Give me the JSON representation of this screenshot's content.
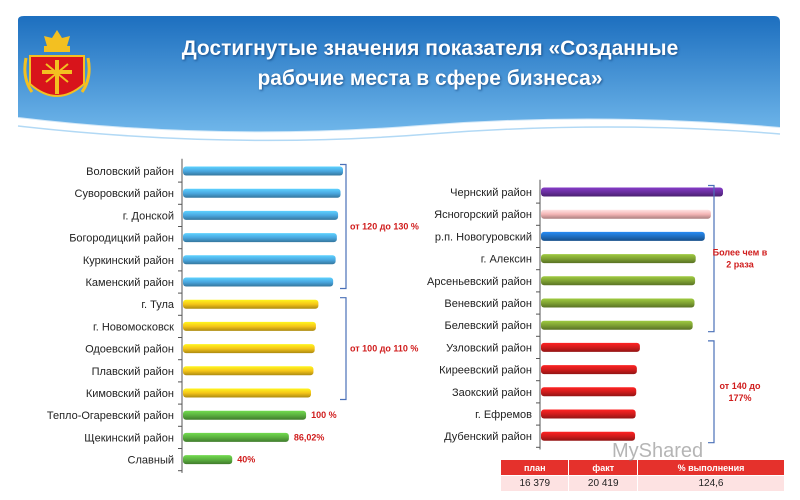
{
  "title_line1": "Достигнутые значения показателя «Созданные",
  "title_line2": "рабочие места в сфере бизнеса»",
  "colors": {
    "blue": "#4aa8e0",
    "yellow": "#f5c518",
    "green": "#5bb03f",
    "purple": "#6a2fa0",
    "pink": "#f4b6b6",
    "darkblue": "#1f6fc2",
    "olive": "#7fa233",
    "red": "#d01c1c",
    "note": "#d01c1c"
  },
  "chart_data": [
    {
      "type": "bar",
      "orientation": "horizontal",
      "categories": [
        "Воловский район",
        "Суворовский район",
        "г. Донской",
        "Богородицкий район",
        "Куркинский район",
        "Каменский район",
        "г. Тула",
        "г. Новомосковск",
        "Одоевский район",
        "Плавский район",
        "Кимовский район",
        "Тепло-Огаревский район",
        "Щекинский район",
        "Славный"
      ],
      "values": [
        130,
        128,
        126,
        125,
        124,
        122,
        110,
        108,
        107,
        106,
        104,
        100,
        86.02,
        40
      ],
      "bar_colors": [
        "blue",
        "blue",
        "blue",
        "blue",
        "blue",
        "blue",
        "yellow",
        "yellow",
        "yellow",
        "yellow",
        "yellow",
        "green",
        "green",
        "green"
      ],
      "data_labels": [
        "",
        "",
        "",
        "",
        "",
        "",
        "",
        "",
        "",
        "",
        "",
        "100 %",
        "86,02%",
        "40%"
      ],
      "annotations": [
        {
          "text": "от 120 до 130 %",
          "from": 0,
          "to": 5
        },
        {
          "text": "от 100 до 110 %",
          "from": 6,
          "to": 10
        }
      ]
    },
    {
      "type": "bar",
      "orientation": "horizontal",
      "categories": [
        "Чернский район",
        "Ясногорский район",
        "р.п. Новогуровский",
        "г. Алексин",
        "Арсеньевский район",
        "Веневский район",
        "Белевский район",
        "Узловский район",
        "Киреевский район",
        "Заокский район",
        "г. Ефремов",
        "Дубенский район"
      ],
      "values": [
        300,
        280,
        270,
        255,
        254,
        253,
        250,
        163,
        158,
        157,
        156,
        155
      ],
      "bar_colors": [
        "purple",
        "pink",
        "darkblue",
        "olive",
        "olive",
        "olive",
        "olive",
        "red",
        "red",
        "red",
        "red",
        "red"
      ],
      "annotations": [
        {
          "text": "Более чем в 2 раза",
          "from": 0,
          "to": 6
        },
        {
          "text": "от 140 до 177%",
          "from": 7,
          "to": 11
        }
      ]
    }
  ],
  "summary_table": {
    "headers": [
      "план",
      "факт",
      "% выполнения"
    ],
    "row": [
      "16 379",
      "20 419",
      "124,6"
    ]
  },
  "watermark": "MyShared"
}
